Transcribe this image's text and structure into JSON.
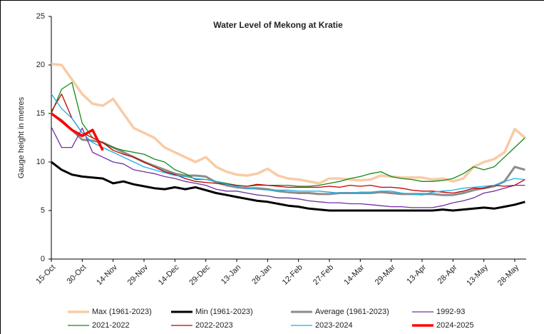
{
  "chart_data": {
    "type": "line",
    "title": "Water Level of Mekong at Kratie",
    "y_label": "Gauge height in metres",
    "categories": [
      "15-Oct",
      null,
      null,
      "30-Oct",
      null,
      null,
      "14-Nov",
      null,
      null,
      "29-Nov",
      null,
      null,
      "14-Dec",
      null,
      null,
      "29-Dec",
      null,
      null,
      "13-Jan",
      null,
      null,
      "28-Jan",
      null,
      null,
      "12-Feb",
      null,
      null,
      "27-Feb",
      null,
      null,
      "14-Mar",
      null,
      null,
      "29-Mar",
      null,
      null,
      "13-Apr",
      null,
      null,
      "28-Apr",
      null,
      null,
      "13-May",
      null,
      null,
      "28-May",
      null
    ],
    "ylim": [
      0,
      25
    ],
    "yticks": [
      0,
      5,
      10,
      15,
      20,
      25
    ],
    "series": [
      {
        "name": "Max (1961-2023)",
        "color": "#f8cba6",
        "line_width": 3.5,
        "values": [
          20.1,
          20.0,
          18.5,
          17.0,
          16.0,
          15.8,
          16.5,
          15.0,
          13.5,
          13.0,
          12.5,
          11.5,
          11.0,
          10.5,
          10.0,
          10.5,
          9.5,
          9.0,
          8.7,
          8.6,
          8.8,
          9.3,
          8.6,
          8.3,
          8.2,
          8.0,
          7.8,
          8.3,
          8.3,
          8.2,
          8.1,
          8.2,
          8.6,
          8.5,
          8.4,
          8.4,
          8.4,
          8.2,
          8.3,
          8.0,
          8.3,
          9.5,
          10.0,
          10.3,
          11.0,
          13.4,
          12.5
        ]
      },
      {
        "name": "Min (1961-2023)",
        "color": "#000000",
        "line_width": 3,
        "values": [
          10.0,
          9.2,
          8.7,
          8.5,
          8.4,
          8.3,
          7.8,
          8.0,
          7.7,
          7.5,
          7.3,
          7.2,
          7.4,
          7.2,
          7.4,
          7.1,
          6.8,
          6.6,
          6.4,
          6.2,
          6.0,
          5.9,
          5.7,
          5.5,
          5.4,
          5.2,
          5.1,
          5.0,
          5.0,
          5.0,
          5.0,
          5.0,
          5.0,
          5.0,
          5.0,
          5.0,
          5.0,
          5.0,
          5.1,
          5.0,
          5.1,
          5.2,
          5.3,
          5.2,
          5.4,
          5.6,
          5.9
        ]
      },
      {
        "name": "Average (1961-2023)",
        "color": "#8c8c8c",
        "line_width": 3,
        "values": [
          15.0,
          14.3,
          13.3,
          12.3,
          12.2,
          12.0,
          11.5,
          11.0,
          10.5,
          10.0,
          9.6,
          9.2,
          8.8,
          8.6,
          8.6,
          8.5,
          7.9,
          7.6,
          7.4,
          7.3,
          7.3,
          7.2,
          7.0,
          6.9,
          6.8,
          6.8,
          6.7,
          6.7,
          6.8,
          6.8,
          6.8,
          6.8,
          6.9,
          6.8,
          6.7,
          6.7,
          6.7,
          6.7,
          6.6,
          6.6,
          6.8,
          7.1,
          7.3,
          7.5,
          8.0,
          9.5,
          9.2
        ]
      },
      {
        "name": "1992-93",
        "color": "#7030a0",
        "line_width": 1.3,
        "values": [
          13.6,
          11.5,
          11.5,
          13.5,
          11.0,
          10.5,
          10.0,
          9.8,
          9.2,
          9.0,
          8.8,
          8.5,
          8.3,
          8.0,
          7.8,
          7.6,
          7.2,
          7.0,
          7.0,
          6.8,
          6.6,
          6.5,
          6.3,
          6.3,
          6.2,
          6.0,
          5.9,
          5.8,
          5.8,
          5.7,
          5.7,
          5.6,
          5.5,
          5.4,
          5.4,
          5.3,
          5.3,
          5.3,
          5.5,
          5.8,
          6.0,
          6.3,
          6.8,
          7.0,
          7.3,
          7.6,
          7.6
        ]
      },
      {
        "name": "2021-2022",
        "color": "#138a13",
        "line_width": 1.3,
        "values": [
          15.0,
          17.5,
          18.2,
          14.0,
          12.5,
          12.0,
          11.5,
          11.2,
          11.0,
          10.8,
          10.3,
          10.0,
          9.2,
          8.8,
          8.2,
          8.2,
          8.0,
          7.8,
          7.6,
          7.5,
          7.6,
          7.6,
          7.6,
          7.6,
          7.5,
          7.5,
          7.6,
          7.8,
          8.0,
          8.3,
          8.5,
          8.8,
          9.0,
          8.5,
          8.3,
          8.2,
          8.0,
          8.0,
          8.1,
          8.3,
          8.8,
          9.5,
          9.2,
          9.5,
          10.5,
          11.5,
          12.5
        ]
      },
      {
        "name": "2022-2023",
        "color": "#c00000",
        "line_width": 1.3,
        "values": [
          15.2,
          17.0,
          14.5,
          13.0,
          12.5,
          12.0,
          11.2,
          10.8,
          10.5,
          10.0,
          9.5,
          9.0,
          8.7,
          8.3,
          8.0,
          7.9,
          7.8,
          7.7,
          7.6,
          7.5,
          7.7,
          7.6,
          7.5,
          7.4,
          7.4,
          7.4,
          7.4,
          7.5,
          7.4,
          7.6,
          7.5,
          7.6,
          7.4,
          7.4,
          7.3,
          7.1,
          7.0,
          7.0,
          6.9,
          6.8,
          7.0,
          7.3,
          7.3,
          7.6,
          7.5,
          7.6,
          8.2
        ]
      },
      {
        "name": "2023-2024",
        "color": "#1ab0e6",
        "line_width": 1.3,
        "values": [
          17.0,
          15.5,
          14.5,
          13.0,
          12.0,
          11.5,
          11.0,
          10.5,
          10.0,
          9.5,
          9.2,
          8.9,
          8.6,
          8.5,
          8.3,
          8.2,
          8.0,
          7.7,
          7.5,
          7.3,
          7.2,
          7.1,
          7.1,
          7.1,
          7.0,
          7.0,
          7.0,
          6.9,
          6.8,
          6.8,
          6.9,
          6.9,
          7.0,
          7.0,
          6.8,
          6.7,
          6.6,
          6.9,
          7.0,
          7.1,
          7.3,
          7.4,
          7.5,
          7.6,
          8.0,
          8.3,
          8.2
        ]
      },
      {
        "name": "2024-2025",
        "color": "#ff0000",
        "line_width": 3.5,
        "values": [
          15.0,
          14.2,
          13.3,
          12.7,
          13.3,
          11.2,
          null,
          null,
          null,
          null,
          null,
          null,
          null,
          null,
          null,
          null,
          null,
          null,
          null,
          null,
          null,
          null,
          null,
          null,
          null,
          null,
          null,
          null,
          null,
          null,
          null,
          null,
          null,
          null,
          null,
          null,
          null,
          null,
          null,
          null,
          null,
          null,
          null,
          null,
          null,
          null,
          null
        ]
      }
    ]
  }
}
